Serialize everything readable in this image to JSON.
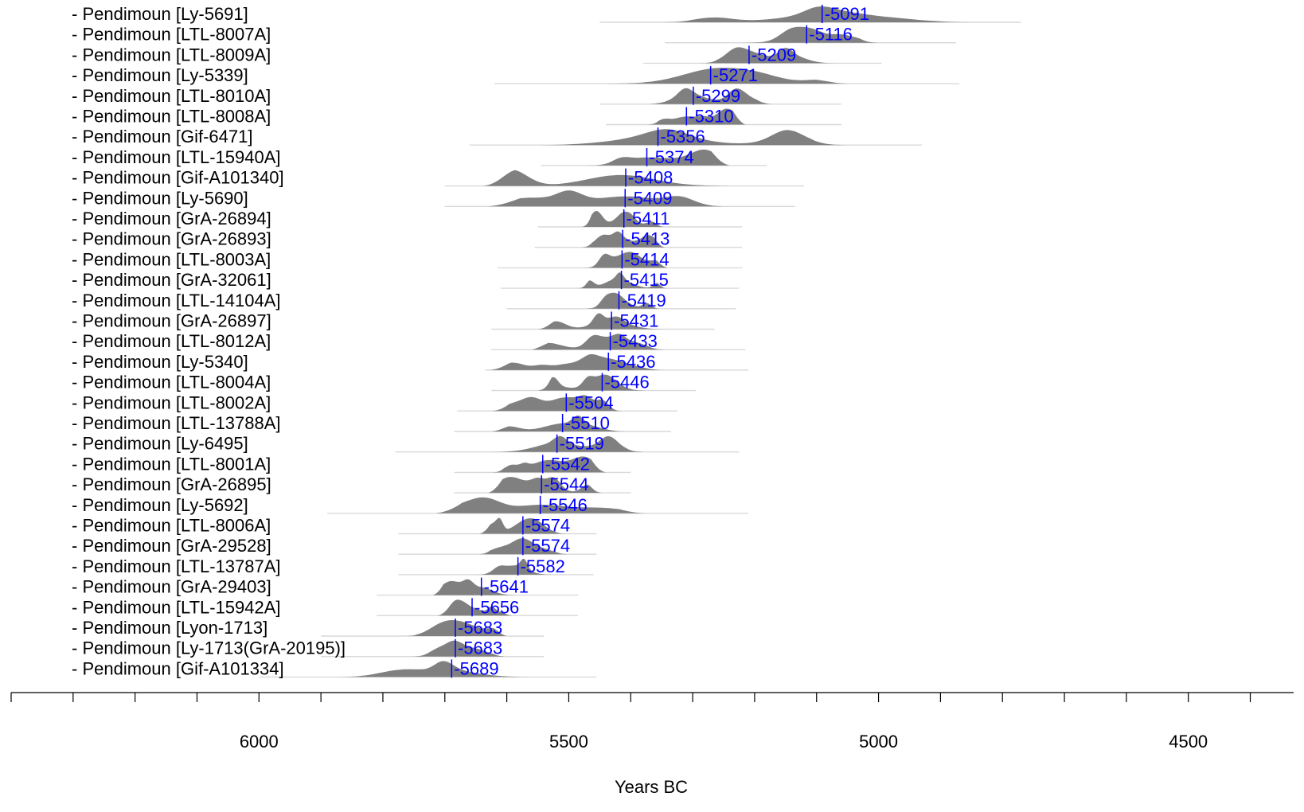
{
  "chart_data": {
    "type": "area",
    "title": "",
    "xlabel": "Years BC",
    "ylabel": "",
    "x_reversed": true,
    "xlim": [
      6400,
      4330
    ],
    "x_ticks": [
      6400,
      6300,
      6200,
      6100,
      6000,
      5900,
      5800,
      5700,
      5600,
      5500,
      5400,
      5300,
      5200,
      5100,
      5000,
      4900,
      4800,
      4700,
      4600,
      4500,
      4400
    ],
    "x_tick_labels": [
      "6000",
      "5500",
      "5000",
      "4500"
    ],
    "x_tick_label_values": [
      6000,
      5500,
      5000,
      4500
    ],
    "grid": false,
    "legend": "none",
    "colors": {
      "density": "#808080",
      "median": "#0000ff",
      "faint": "#d9d9d9",
      "axis": "#000000"
    },
    "series": [
      {
        "label": "- Pendimoun [Ly-5691]",
        "median": -5091,
        "range": [
          5370,
          4830
        ],
        "faint": [
          5450,
          4770
        ]
      },
      {
        "label": "- Pendimoun [LTL-8007A]",
        "median": -5116,
        "range": [
          5245,
          5000
        ],
        "faint": [
          5345,
          4875
        ]
      },
      {
        "label": "- Pendimoun [LTL-8009A]",
        "median": -5209,
        "range": [
          5290,
          5060
        ],
        "faint": [
          5380,
          4995
        ]
      },
      {
        "label": "- Pendimoun [Ly-5339]",
        "median": -5271,
        "range": [
          5465,
          5050
        ],
        "faint": [
          5620,
          4870
        ]
      },
      {
        "label": "- Pendimoun [LTL-8010A]",
        "median": -5299,
        "range": [
          5385,
          5170
        ],
        "faint": [
          5450,
          5060
        ]
      },
      {
        "label": "- Pendimoun [LTL-8008A]",
        "median": -5310,
        "range": [
          5375,
          5215
        ],
        "faint": [
          5440,
          5060
        ]
      },
      {
        "label": "- Pendimoun [Gif-6471]",
        "median": -5356,
        "range": [
          5560,
          5045
        ],
        "faint": [
          5660,
          4930
        ]
      },
      {
        "label": "- Pendimoun [LTL-15940A]",
        "median": -5374,
        "range": [
          5480,
          5240
        ],
        "faint": [
          5545,
          5180
        ]
      },
      {
        "label": "- Pendimoun [Gif-A101340]",
        "median": -5408,
        "range": [
          5640,
          5215
        ],
        "faint": [
          5700,
          5120
        ]
      },
      {
        "label": "- Pendimoun [Ly-5690]",
        "median": -5409,
        "range": [
          5630,
          5220
        ],
        "faint": [
          5700,
          5135
        ]
      },
      {
        "label": "- Pendimoun [GrA-26894]",
        "median": -5411,
        "range": [
          5480,
          5345
        ],
        "faint": [
          5550,
          5220
        ]
      },
      {
        "label": "- Pendimoun [GrA-26893]",
        "median": -5413,
        "range": [
          5480,
          5345
        ],
        "faint": [
          5555,
          5220
        ]
      },
      {
        "label": "- Pendimoun [LTL-8003A]",
        "median": -5414,
        "range": [
          5485,
          5340
        ],
        "faint": [
          5615,
          5220
        ]
      },
      {
        "label": "- Pendimoun [GrA-32061]",
        "median": -5415,
        "range": [
          5485,
          5340
        ],
        "faint": [
          5610,
          5225
        ]
      },
      {
        "label": "- Pendimoun [LTL-14104A]",
        "median": -5419,
        "range": [
          5485,
          5340
        ],
        "faint": [
          5600,
          5230
        ]
      },
      {
        "label": "- Pendimoun [GrA-26897]",
        "median": -5431,
        "range": [
          5550,
          5340
        ],
        "faint": [
          5625,
          5265
        ]
      },
      {
        "label": "- Pendimoun [LTL-8012A]",
        "median": -5433,
        "range": [
          5560,
          5345
        ],
        "faint": [
          5625,
          5215
        ]
      },
      {
        "label": "- Pendimoun [Ly-5340]",
        "median": -5436,
        "range": [
          5630,
          5340
        ],
        "faint": [
          5635,
          5210
        ]
      },
      {
        "label": "- Pendimoun [LTL-8004A]",
        "median": -5446,
        "range": [
          5550,
          5370
        ],
        "faint": [
          5625,
          5295
        ]
      },
      {
        "label": "- Pendimoun [LTL-8002A]",
        "median": -5504,
        "range": [
          5625,
          5395
        ],
        "faint": [
          5680,
          5325
        ]
      },
      {
        "label": "- Pendimoun [LTL-13788A]",
        "median": -5510,
        "range": [
          5625,
          5400
        ],
        "faint": [
          5685,
          5335
        ]
      },
      {
        "label": "- Pendimoun [Ly-6495]",
        "median": -5519,
        "range": [
          5635,
          5375
        ],
        "faint": [
          5780,
          5225
        ]
      },
      {
        "label": "- Pendimoun [LTL-8001A]",
        "median": -5542,
        "range": [
          5630,
          5440
        ],
        "faint": [
          5685,
          5400
        ]
      },
      {
        "label": "- Pendimoun [GrA-26895]",
        "median": -5544,
        "range": [
          5630,
          5445
        ],
        "faint": [
          5685,
          5400
        ]
      },
      {
        "label": "- Pendimoun [Ly-5692]",
        "median": -5546,
        "range": [
          5715,
          5375
        ],
        "faint": [
          5890,
          5210
        ]
      },
      {
        "label": "- Pendimoun [LTL-8006A]",
        "median": -5574,
        "range": [
          5645,
          5500
        ],
        "faint": [
          5775,
          5455
        ]
      },
      {
        "label": "- Pendimoun [GrA-29528]",
        "median": -5574,
        "range": [
          5645,
          5500
        ],
        "faint": [
          5775,
          5455
        ]
      },
      {
        "label": "- Pendimoun [LTL-13787A]",
        "median": -5582,
        "range": [
          5650,
          5515
        ],
        "faint": [
          5775,
          5460
        ]
      },
      {
        "label": "- Pendimoun [GrA-29403]",
        "median": -5641,
        "range": [
          5720,
          5580
        ],
        "faint": [
          5810,
          5485
        ]
      },
      {
        "label": "- Pendimoun [LTL-15942A]",
        "median": -5656,
        "range": [
          5720,
          5590
        ],
        "faint": [
          5810,
          5485
        ]
      },
      {
        "label": "- Pendimoun [Lyon-1713]",
        "median": -5683,
        "range": [
          5765,
          5600
        ],
        "faint": [
          5900,
          5540
        ]
      },
      {
        "label": "- Pendimoun [Ly-1713(GrA-20195)]",
        "median": -5683,
        "range": [
          5765,
          5600
        ],
        "faint": [
          5900,
          5540
        ]
      },
      {
        "label": "- Pendimoun [Gif-A101334]",
        "median": -5689,
        "range": [
          5880,
          5550
        ],
        "faint": [
          6000,
          5455
        ]
      }
    ]
  }
}
